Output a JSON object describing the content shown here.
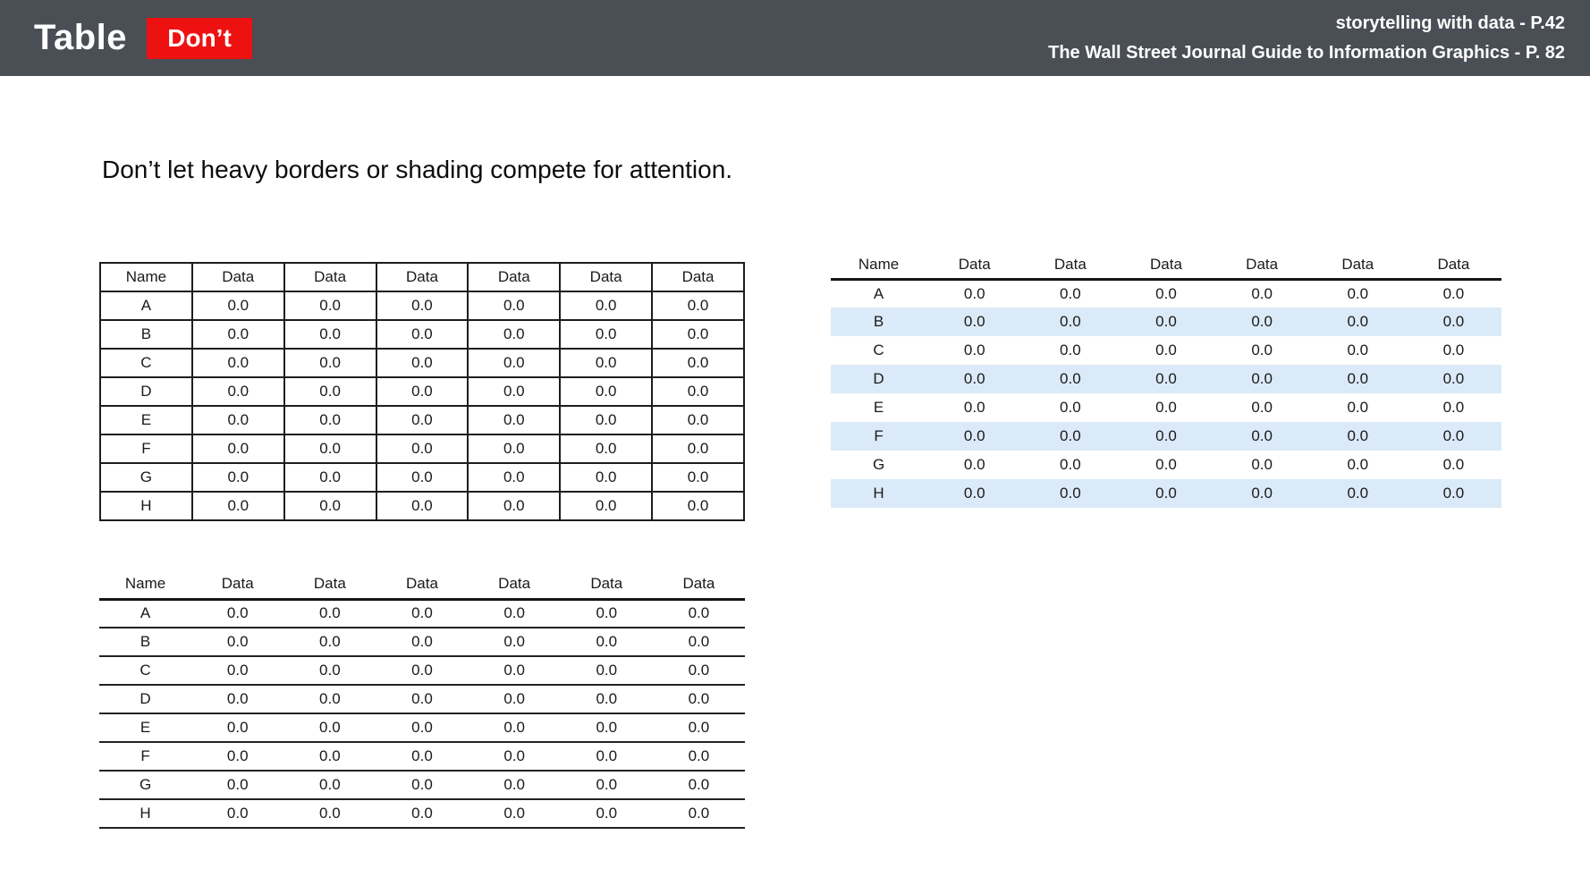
{
  "header": {
    "title": "Table",
    "badge": {
      "label": "Don’t"
    },
    "references": [
      "storytelling with data - P.42",
      "The Wall Street Journal Guide to Information Graphics - P. 82"
    ]
  },
  "heading": "Don’t let heavy borders or shading compete for attention.",
  "table_columns": [
    "Name",
    "Data",
    "Data",
    "Data",
    "Data",
    "Data",
    "Data"
  ],
  "table_rows": [
    {
      "name": "A",
      "values": [
        "0.0",
        "0.0",
        "0.0",
        "0.0",
        "0.0",
        "0.0"
      ]
    },
    {
      "name": "B",
      "values": [
        "0.0",
        "0.0",
        "0.0",
        "0.0",
        "0.0",
        "0.0"
      ]
    },
    {
      "name": "C",
      "values": [
        "0.0",
        "0.0",
        "0.0",
        "0.0",
        "0.0",
        "0.0"
      ]
    },
    {
      "name": "D",
      "values": [
        "0.0",
        "0.0",
        "0.0",
        "0.0",
        "0.0",
        "0.0"
      ]
    },
    {
      "name": "E",
      "values": [
        "0.0",
        "0.0",
        "0.0",
        "0.0",
        "0.0",
        "0.0"
      ]
    },
    {
      "name": "F",
      "values": [
        "0.0",
        "0.0",
        "0.0",
        "0.0",
        "0.0",
        "0.0"
      ]
    },
    {
      "name": "G",
      "values": [
        "0.0",
        "0.0",
        "0.0",
        "0.0",
        "0.0",
        "0.0"
      ]
    },
    {
      "name": "H",
      "values": [
        "0.0",
        "0.0",
        "0.0",
        "0.0",
        "0.0",
        "0.0"
      ]
    }
  ],
  "tables": [
    {
      "id": "table-grid",
      "style": "heavy-full-grid"
    },
    {
      "id": "table-zebra",
      "style": "zebra-shading"
    },
    {
      "id": "table-lines",
      "style": "horizontal-rules"
    }
  ],
  "colors": {
    "header_bg": "#4a4e55",
    "badge_bg": "#ee1111",
    "badge_text": "#ffffff",
    "stripe": "#dbeaf8",
    "table_border": "#1d1d1d"
  }
}
